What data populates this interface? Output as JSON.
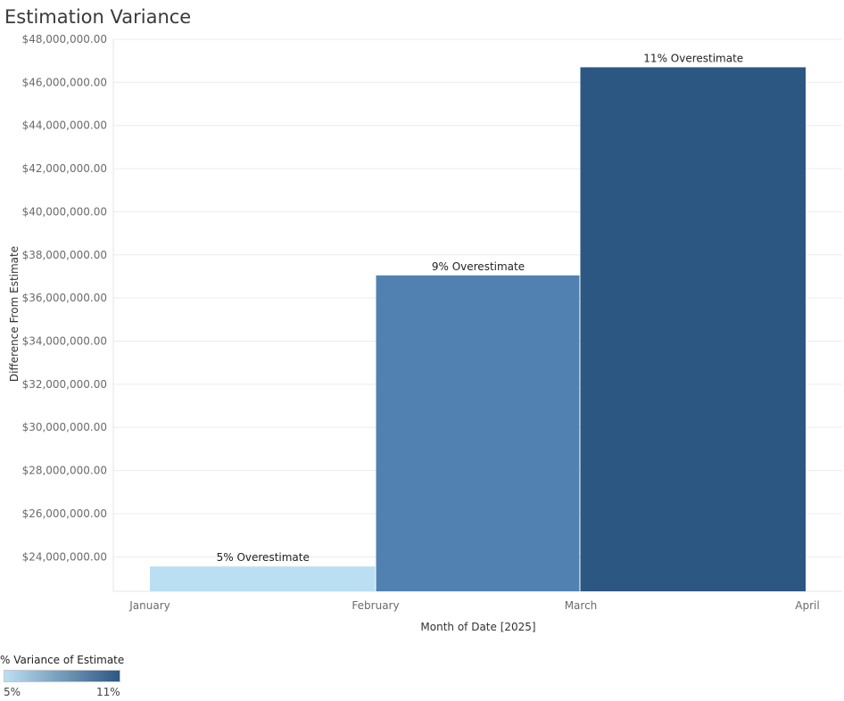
{
  "chart_data": {
    "type": "bar",
    "title": "Estimation Variance",
    "xlabel": "Month of Date [2025]",
    "ylabel": "Difference From Estimate",
    "x_ticks": [
      "January",
      "February",
      "March",
      "April"
    ],
    "categories": [
      "January",
      "February",
      "March"
    ],
    "values": [
      23550000,
      37050000,
      46700000
    ],
    "pct_variance": [
      5,
      9,
      11
    ],
    "data_labels": [
      "5% Overestimate",
      "9% Overestimate",
      "11% Overestimate"
    ],
    "ylim": [
      22400000,
      48000000
    ],
    "y_ticks": [
      24000000,
      26000000,
      28000000,
      30000000,
      32000000,
      34000000,
      36000000,
      38000000,
      40000000,
      42000000,
      44000000,
      46000000,
      48000000
    ],
    "y_tick_labels": [
      "$24,000,000.00",
      "$26,000,000.00",
      "$28,000,000.00",
      "$30,000,000.00",
      "$32,000,000.00",
      "$34,000,000.00",
      "$36,000,000.00",
      "$38,000,000.00",
      "$40,000,000.00",
      "$42,000,000.00",
      "$44,000,000.00",
      "$46,000,000.00",
      "$48,000,000.00"
    ],
    "grid": true,
    "colors": [
      "#bbdff2",
      "#5181b1",
      "#2c5783"
    ],
    "legend": {
      "title": "% Variance of Estimate",
      "min_label": "5%",
      "max_label": "11%",
      "gradient": [
        "#bbdff2",
        "#2c5783"
      ],
      "placement": "bottom-left"
    }
  }
}
